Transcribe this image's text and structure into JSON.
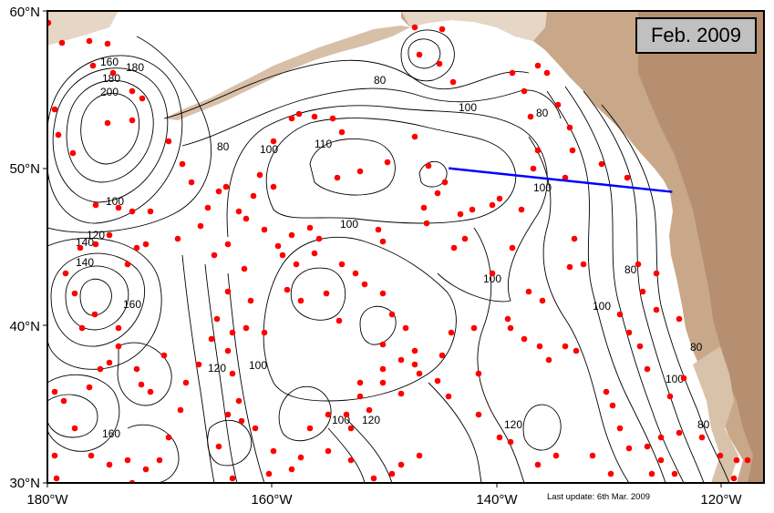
{
  "map": {
    "date_label": "Feb. 2009",
    "update_note": "Last update: 6th Mar. 2009",
    "lat_labels": [
      "60°N",
      "50°N",
      "40°N",
      "30°N"
    ],
    "lon_labels": [
      "180°W",
      "160°W",
      "140°W",
      "120°W"
    ],
    "contour_labels": [
      "80",
      "100",
      "110",
      "100",
      "100",
      "100",
      "80",
      "80",
      "80",
      "80",
      "100",
      "120",
      "100",
      "120",
      "120",
      "100",
      "160",
      "140",
      "160",
      "180",
      "100",
      "80",
      "200",
      "180",
      "160",
      "140",
      "120",
      "100",
      "100"
    ],
    "colors": {
      "land": "#c9a889",
      "land_light": "#e2d0bd",
      "float_marker": "#ff0000",
      "transect": "#0000ff",
      "contour": "#000000",
      "date_box": "#c0c0c0"
    },
    "transect": {
      "start": {
        "lon": -145,
        "lat": 50
      },
      "end": {
        "lon": -125.5,
        "lat": 48.5
      }
    },
    "extent": {
      "lon_min": -180,
      "lon_max": -117.5,
      "lat_min": 30,
      "lat_max": 60
    }
  }
}
